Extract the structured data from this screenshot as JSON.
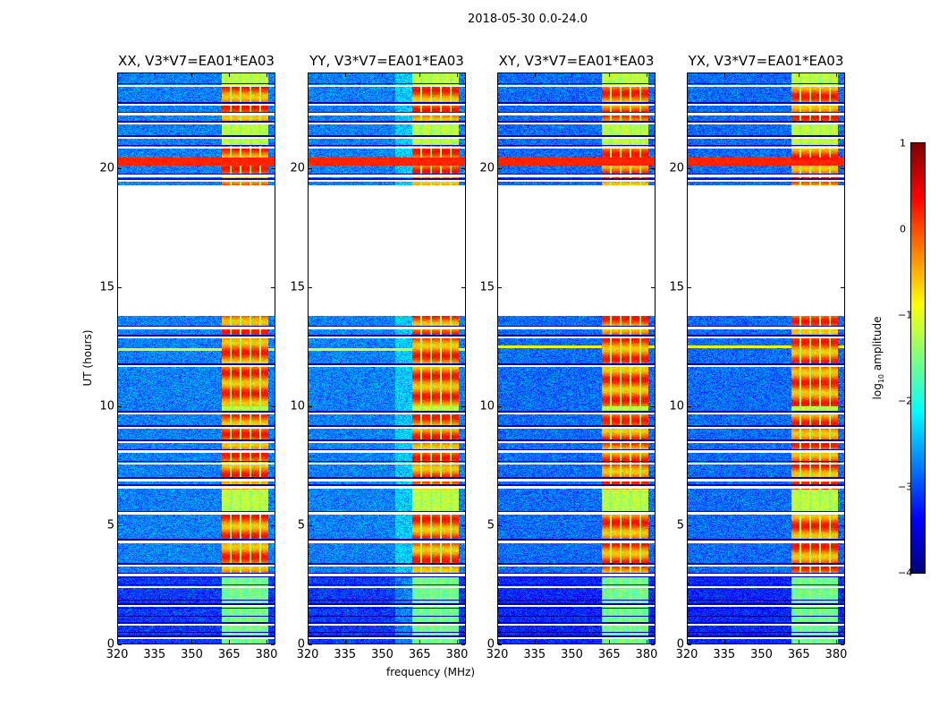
{
  "chart_data": {
    "type": "heatmap",
    "title": "2018-05-30 0.0-24.0",
    "xlabel": "frequency (MHz)",
    "ylabel": "UT (hours)",
    "xlim": [
      320,
      383.6
    ],
    "ylim": [
      0,
      24
    ],
    "xticks": [
      "320",
      "335",
      "350",
      "365",
      "380"
    ],
    "xtick_values": [
      320,
      335,
      350,
      365,
      380
    ],
    "yticks": [
      "0",
      "5",
      "10",
      "15",
      "20"
    ],
    "ytick_values": [
      0,
      5,
      10,
      15,
      20
    ],
    "panels": [
      {
        "title": "XX, V3*V7=EA01*EA03",
        "strong_row_hour": 20.3,
        "crossline_hour": 12.4
      },
      {
        "title": "YY, V3*V7=EA01*EA03",
        "strong_row_hour": 20.3,
        "crossline_hour": 12.4
      },
      {
        "title": "XY, V3*V7=EA01*EA03",
        "strong_row_hour": 20.3,
        "crossline_hour": 12.5
      },
      {
        "title": "YX, V3*V7=EA01*EA03",
        "strong_row_hour": 20.3,
        "crossline_hour": 12.5
      }
    ],
    "features": {
      "background_log_amplitude": -2.7,
      "rfi_band_mhz": [
        362,
        381
      ],
      "rfi_subbands_mhz": [
        [
          362,
          365.3
        ],
        [
          366,
          369.3
        ],
        [
          370,
          373.3
        ],
        [
          374,
          377.3
        ],
        [
          378,
          381
        ]
      ],
      "flagged_gap_hours": [
        13.8,
        19.3
      ],
      "flagged_lines_hours": [
        0.25,
        0.8,
        1.6,
        2.4,
        2.9,
        3.3,
        4.3,
        5.5,
        6.6,
        6.9,
        7.6,
        8.1,
        8.5,
        9.1,
        9.7,
        11.7,
        12.9,
        13.3,
        19.5,
        19.7,
        20.9,
        21.3,
        21.9,
        22.3,
        22.7,
        23.5
      ],
      "strong_intervals_hours": [
        [
          3.0,
          5.5
        ],
        [
          6.5,
          9.8
        ],
        [
          10.0,
          13.8
        ],
        [
          19.3,
          21.0
        ],
        [
          22.0,
          23.5
        ]
      ]
    },
    "colorbar": {
      "label": "log10 amplitude",
      "label_base": "log",
      "label_sub": "10",
      "label_rest": " amplitude",
      "colormap": "jet",
      "range": [
        -4,
        1
      ],
      "ticks": [
        "1",
        "0",
        "−1",
        "−2",
        "−3",
        "−4"
      ],
      "tick_values": [
        1,
        0,
        -1,
        -2,
        -3,
        -4
      ]
    }
  }
}
